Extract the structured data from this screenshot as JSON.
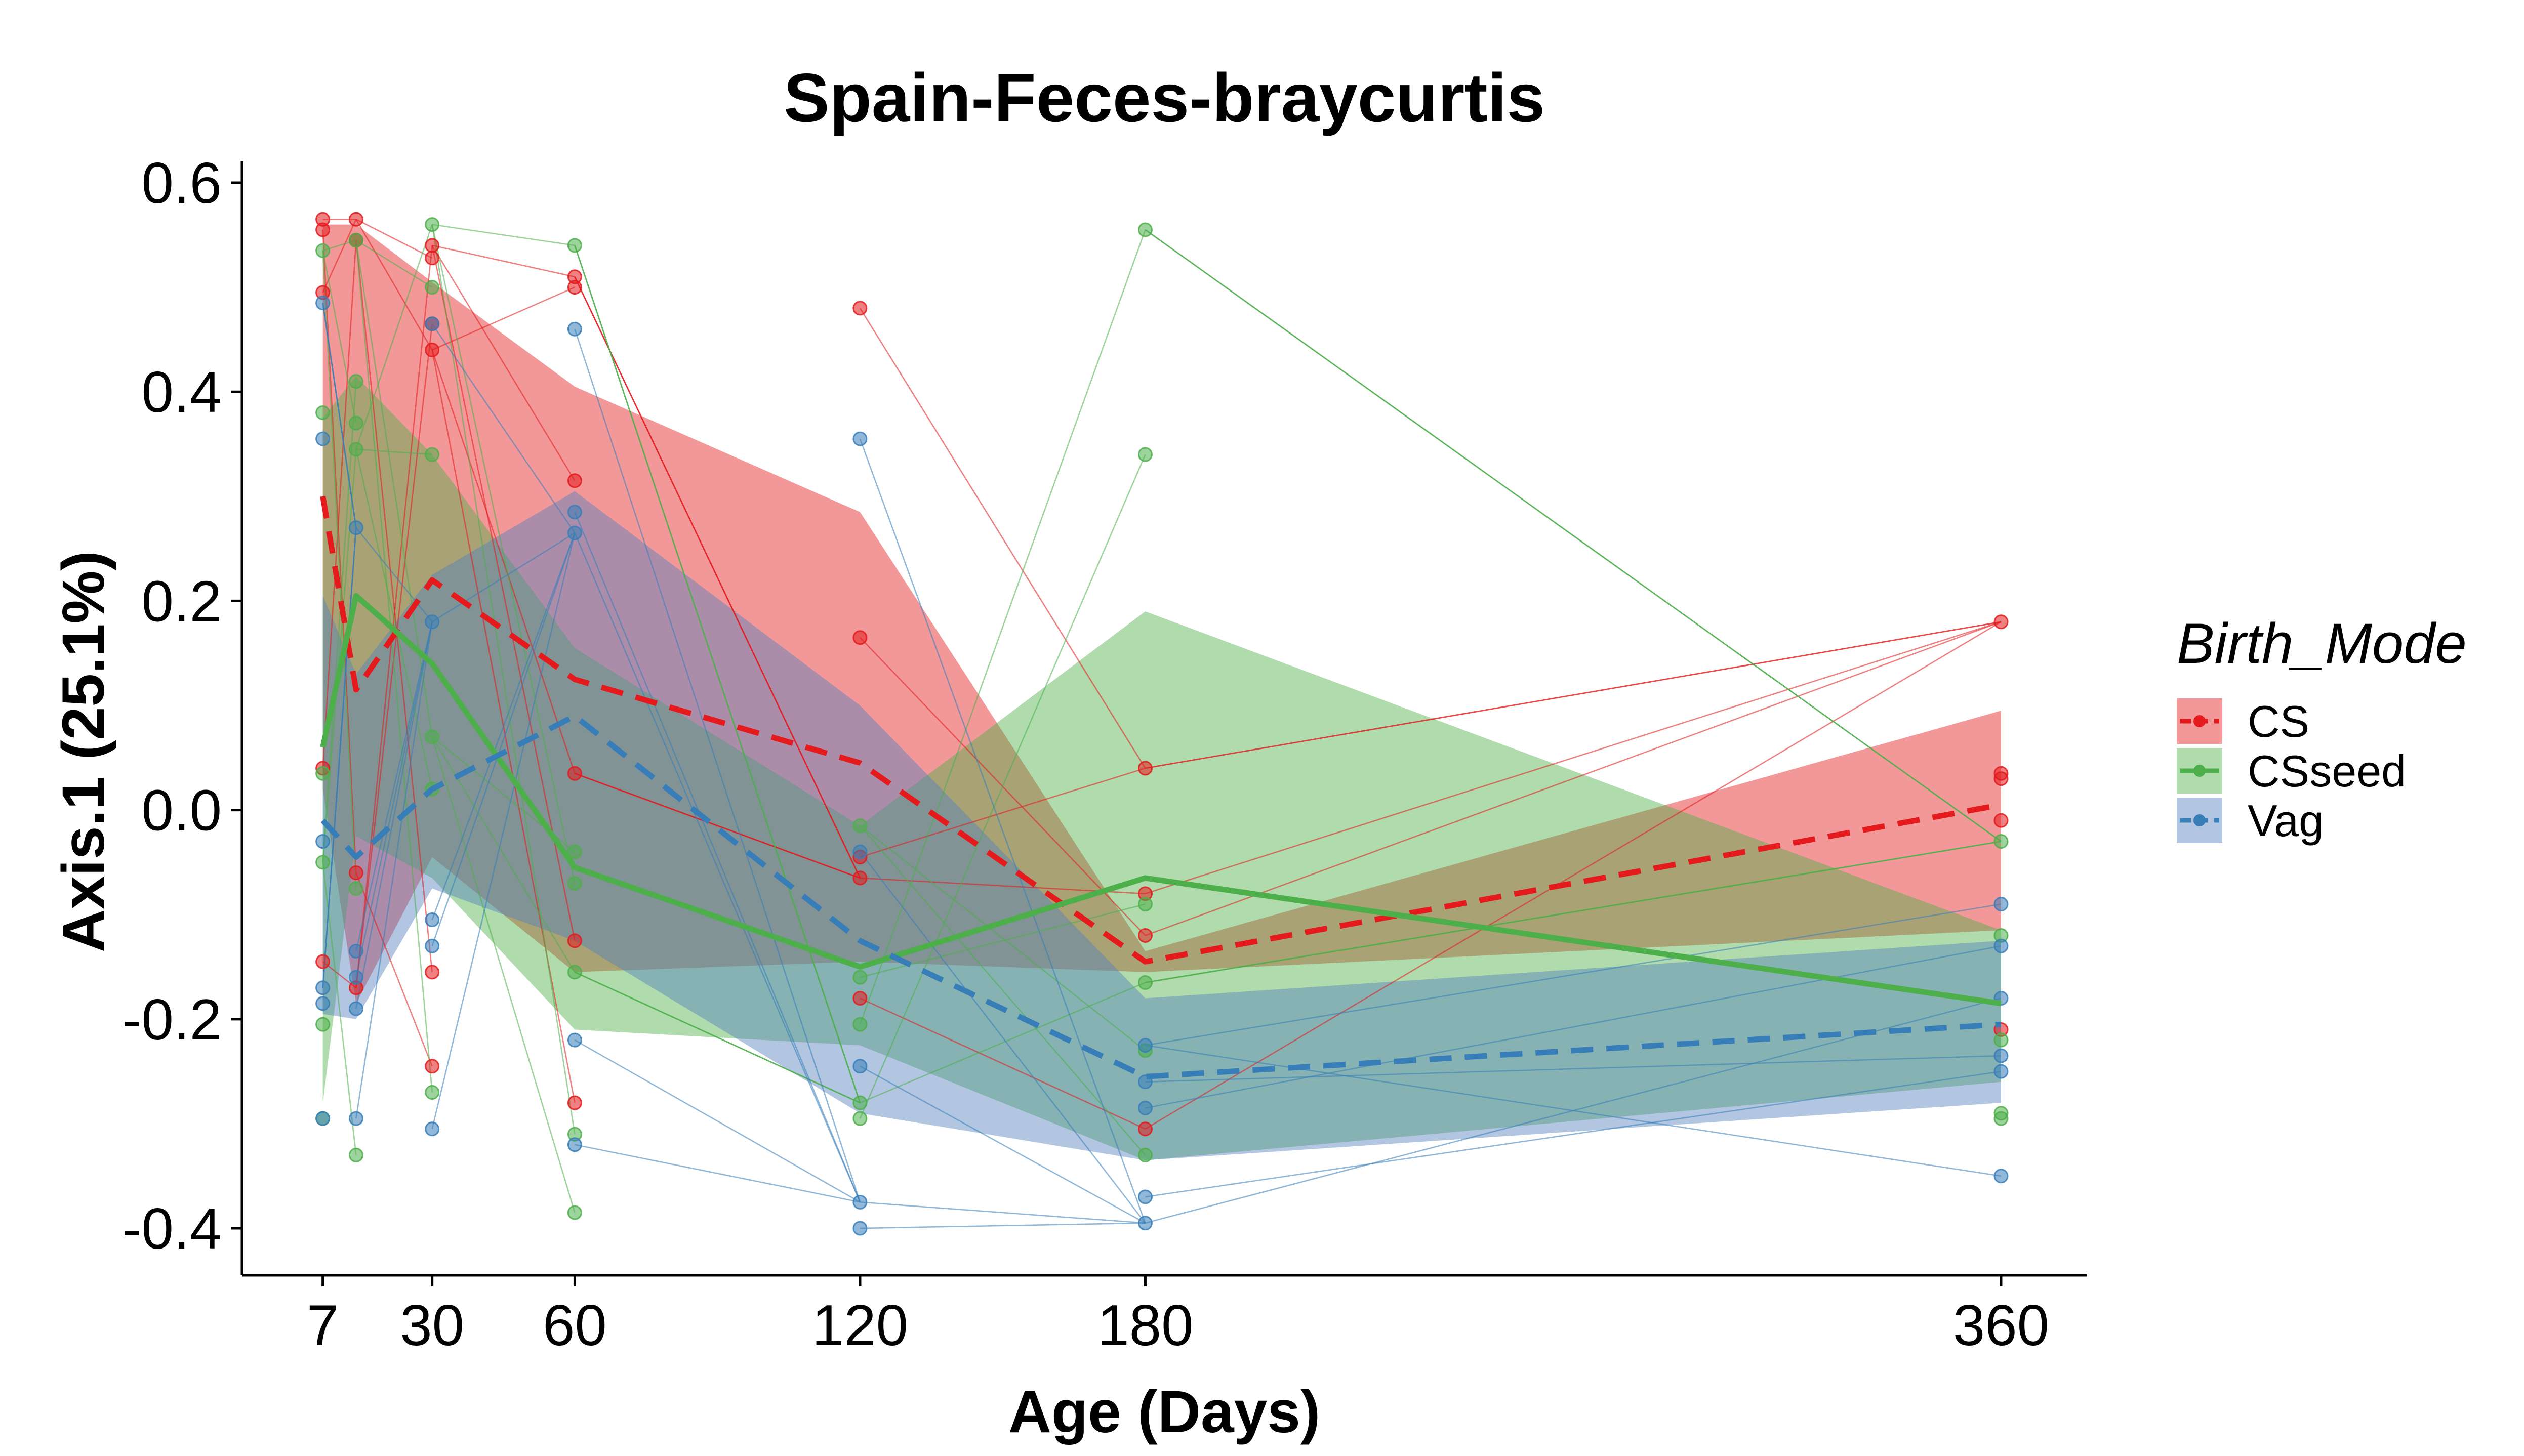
{
  "chart_data": {
    "type": "line",
    "title": "Spain-Feces-braycurtis",
    "xlabel": "Age (Days)",
    "ylabel": "Axis.1 (25.1%)",
    "x_ticks": [
      7,
      30,
      60,
      120,
      180,
      360
    ],
    "x_tick_labels": [
      "7",
      "30",
      "60",
      "120",
      "180",
      "360"
    ],
    "y_ticks": [
      -0.4,
      -0.2,
      0.0,
      0.2,
      0.4,
      0.6
    ],
    "y_tick_labels": [
      "-0.4",
      "-0.2",
      "0.0",
      "0.2",
      "0.4",
      "0.6"
    ],
    "xlim": [
      -10,
      378
    ],
    "ylim": [
      -0.445,
      0.615
    ],
    "grid": false,
    "legend": {
      "title": "Birth_Mode",
      "position": "right",
      "entries": [
        "CS",
        "CSseed",
        "Vag"
      ]
    },
    "colors": {
      "CS": "#E41A1C",
      "CSseed": "#4DAF4A",
      "Vag": "#377EB8"
    },
    "band_colors": {
      "CS": "#E41A1C",
      "CSseed": "#4DAF4A",
      "Vag": "#5580BD"
    },
    "series": [
      {
        "name": "CS",
        "line_style": "dashed",
        "mean": [
          [
            7,
            0.3
          ],
          [
            14,
            0.115
          ],
          [
            30,
            0.22
          ],
          [
            60,
            0.125
          ],
          [
            120,
            0.045
          ],
          [
            180,
            -0.145
          ],
          [
            360,
            0.005
          ]
        ],
        "band_upper": [
          [
            7,
            0.56
          ],
          [
            14,
            0.56
          ],
          [
            30,
            0.505
          ],
          [
            60,
            0.405
          ],
          [
            120,
            0.285
          ],
          [
            180,
            -0.135
          ],
          [
            360,
            0.095
          ]
        ],
        "band_lower": [
          [
            7,
            0.02
          ],
          [
            14,
            -0.185
          ],
          [
            30,
            -0.045
          ],
          [
            60,
            -0.155
          ],
          [
            120,
            -0.145
          ],
          [
            180,
            -0.155
          ],
          [
            360,
            -0.115
          ]
        ],
        "points": [
          [
            7,
            0.565
          ],
          [
            7,
            0.555
          ],
          [
            7,
            0.495
          ],
          [
            7,
            0.04
          ],
          [
            7,
            -0.145
          ],
          [
            14,
            0.565
          ],
          [
            14,
            0.545
          ],
          [
            14,
            -0.06
          ],
          [
            14,
            -0.17
          ],
          [
            30,
            0.54
          ],
          [
            30,
            0.528
          ],
          [
            30,
            0.44
          ],
          [
            30,
            0.465
          ],
          [
            30,
            -0.155
          ],
          [
            30,
            -0.245
          ],
          [
            60,
            0.51
          ],
          [
            60,
            0.5
          ],
          [
            60,
            0.315
          ],
          [
            60,
            0.035
          ],
          [
            60,
            -0.125
          ],
          [
            60,
            -0.28
          ],
          [
            120,
            0.48
          ],
          [
            120,
            0.165
          ],
          [
            120,
            -0.045
          ],
          [
            120,
            -0.065
          ],
          [
            120,
            -0.18
          ],
          [
            180,
            0.04
          ],
          [
            180,
            -0.08
          ],
          [
            180,
            -0.12
          ],
          [
            180,
            -0.305
          ],
          [
            360,
            0.18
          ],
          [
            360,
            0.035
          ],
          [
            360,
            0.03
          ],
          [
            360,
            -0.01
          ],
          [
            360,
            -0.21
          ]
        ]
      },
      {
        "name": "CSseed",
        "line_style": "solid",
        "mean": [
          [
            7,
            0.06
          ],
          [
            14,
            0.205
          ],
          [
            30,
            0.14
          ],
          [
            60,
            -0.055
          ],
          [
            120,
            -0.15
          ],
          [
            180,
            -0.065
          ],
          [
            360,
            -0.185
          ]
        ],
        "band_upper": [
          [
            7,
            0.375
          ],
          [
            14,
            0.415
          ],
          [
            30,
            0.34
          ],
          [
            60,
            0.155
          ],
          [
            120,
            -0.015
          ],
          [
            180,
            0.19
          ],
          [
            360,
            -0.115
          ]
        ],
        "band_lower": [
          [
            7,
            -0.28
          ],
          [
            14,
            -0.025
          ],
          [
            30,
            -0.065
          ],
          [
            60,
            -0.21
          ],
          [
            120,
            -0.225
          ],
          [
            180,
            -0.335
          ],
          [
            360,
            -0.26
          ]
        ],
        "points": [
          [
            7,
            0.535
          ],
          [
            7,
            0.38
          ],
          [
            7,
            0.035
          ],
          [
            7,
            -0.05
          ],
          [
            7,
            -0.205
          ],
          [
            7,
            -0.295
          ],
          [
            14,
            0.545
          ],
          [
            14,
            0.41
          ],
          [
            14,
            0.37
          ],
          [
            14,
            0.345
          ],
          [
            14,
            -0.075
          ],
          [
            14,
            -0.33
          ],
          [
            30,
            0.56
          ],
          [
            30,
            0.5
          ],
          [
            30,
            0.34
          ],
          [
            30,
            0.07
          ],
          [
            30,
            0.02
          ],
          [
            30,
            -0.27
          ],
          [
            60,
            0.54
          ],
          [
            60,
            -0.04
          ],
          [
            60,
            -0.07
          ],
          [
            60,
            -0.155
          ],
          [
            60,
            -0.31
          ],
          [
            60,
            -0.385
          ],
          [
            120,
            -0.015
          ],
          [
            120,
            -0.16
          ],
          [
            120,
            -0.205
          ],
          [
            120,
            -0.28
          ],
          [
            120,
            -0.295
          ],
          [
            180,
            0.555
          ],
          [
            180,
            0.34
          ],
          [
            180,
            -0.09
          ],
          [
            180,
            -0.165
          ],
          [
            180,
            -0.23
          ],
          [
            180,
            -0.33
          ],
          [
            360,
            -0.03
          ],
          [
            360,
            -0.12
          ],
          [
            360,
            -0.22
          ],
          [
            360,
            -0.29
          ],
          [
            360,
            -0.295
          ]
        ]
      },
      {
        "name": "Vag",
        "line_style": "dashed",
        "mean": [
          [
            7,
            -0.01
          ],
          [
            14,
            -0.045
          ],
          [
            30,
            0.02
          ],
          [
            60,
            0.09
          ],
          [
            120,
            -0.125
          ],
          [
            180,
            -0.255
          ],
          [
            360,
            -0.205
          ]
        ],
        "band_upper": [
          [
            7,
            0.205
          ],
          [
            14,
            0.13
          ],
          [
            30,
            0.225
          ],
          [
            60,
            0.305
          ],
          [
            120,
            0.1
          ],
          [
            180,
            -0.18
          ],
          [
            360,
            -0.125
          ]
        ],
        "band_lower": [
          [
            7,
            -0.195
          ],
          [
            14,
            -0.2
          ],
          [
            30,
            -0.075
          ],
          [
            60,
            -0.125
          ],
          [
            120,
            -0.29
          ],
          [
            180,
            -0.335
          ],
          [
            360,
            -0.28
          ]
        ],
        "points": [
          [
            7,
            0.485
          ],
          [
            7,
            0.355
          ],
          [
            7,
            -0.03
          ],
          [
            7,
            -0.17
          ],
          [
            7,
            -0.185
          ],
          [
            7,
            -0.295
          ],
          [
            14,
            0.27
          ],
          [
            14,
            -0.135
          ],
          [
            14,
            -0.16
          ],
          [
            14,
            -0.19
          ],
          [
            14,
            -0.295
          ],
          [
            30,
            0.465
          ],
          [
            30,
            0.18
          ],
          [
            30,
            -0.105
          ],
          [
            30,
            -0.13
          ],
          [
            30,
            -0.305
          ],
          [
            60,
            0.46
          ],
          [
            60,
            0.285
          ],
          [
            60,
            0.265
          ],
          [
            60,
            -0.22
          ],
          [
            60,
            -0.32
          ],
          [
            120,
            0.355
          ],
          [
            120,
            -0.04
          ],
          [
            120,
            -0.245
          ],
          [
            120,
            -0.375
          ],
          [
            120,
            -0.4
          ],
          [
            180,
            -0.225
          ],
          [
            180,
            -0.26
          ],
          [
            180,
            -0.285
          ],
          [
            180,
            -0.37
          ],
          [
            180,
            -0.395
          ],
          [
            360,
            -0.09
          ],
          [
            360,
            -0.13
          ],
          [
            360,
            -0.18
          ],
          [
            360,
            -0.235
          ],
          [
            360,
            -0.25
          ],
          [
            360,
            -0.35
          ]
        ]
      }
    ]
  }
}
